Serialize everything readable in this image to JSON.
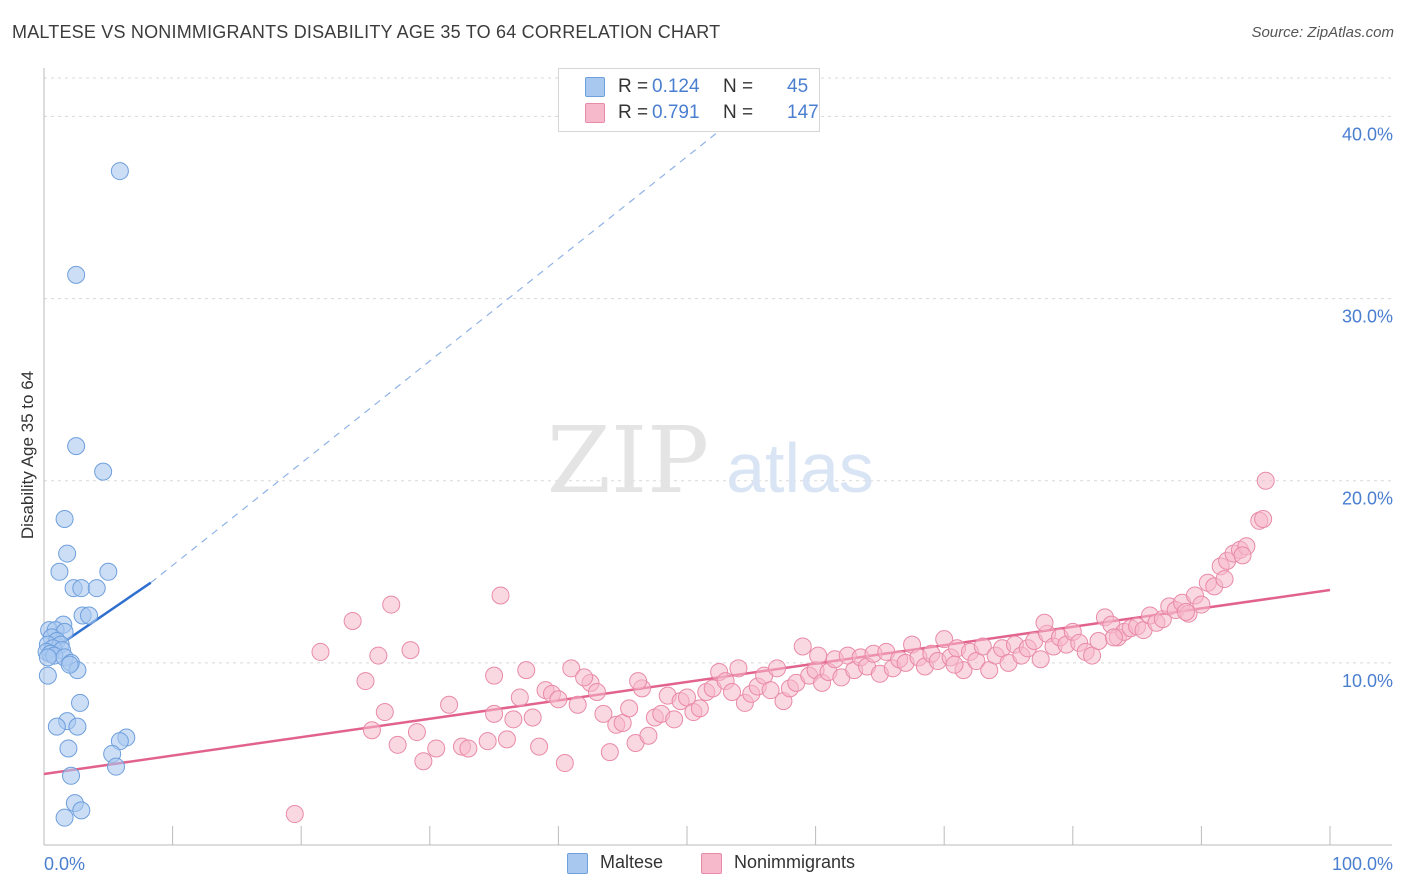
{
  "title": "MALTESE VS NONIMMIGRANTS DISABILITY AGE 35 TO 64 CORRELATION CHART",
  "source": "Source: ZipAtlas.com",
  "watermark": {
    "zip": "ZIP",
    "atlas": "atlas"
  },
  "colors": {
    "maltese_fill": "#a9c8f0",
    "maltese_stroke": "#6f9fdc",
    "maltese_line": "#2f6fd0",
    "nonimmigrants_fill": "#f6b8cb",
    "nonimmigrants_stroke": "#e98aa8",
    "nonimmigrants_line": "#e2628e",
    "tick_label": "#4a7fd0",
    "grid": "#d8d8d8"
  },
  "stats": {
    "maltese": {
      "r_label": "R =",
      "r_value": "0.124",
      "n_label": "N =",
      "n_value": "45"
    },
    "nonimmigrants": {
      "r_label": "R =",
      "r_value": "0.791",
      "n_label": "N =",
      "n_value": "147"
    }
  },
  "legend": {
    "maltese": "Maltese",
    "nonimmigrants": "Nonimmigrants"
  },
  "chart_data": {
    "type": "scatter",
    "title": "MALTESE VS NONIMMIGRANTS DISABILITY AGE 35 TO 64 CORRELATION CHART",
    "xlabel": "",
    "ylabel": "Disability Age 35 to 64",
    "xlim": [
      0,
      100
    ],
    "ylim": [
      0,
      42
    ],
    "x_tick_labels": [
      {
        "value": 0,
        "label": "0.0%"
      },
      {
        "value": 100,
        "label": "100.0%"
      }
    ],
    "y_tick_labels": [
      {
        "value": 10,
        "label": "10.0%"
      },
      {
        "value": 20,
        "label": "20.0%"
      },
      {
        "value": 30,
        "label": "30.0%"
      },
      {
        "value": 40,
        "label": "40.0%"
      }
    ],
    "series": [
      {
        "name": "Maltese",
        "R": 0.124,
        "N": 45,
        "trend": {
          "x": [
            0,
            8.3
          ],
          "y": [
            10.4,
            14.4
          ]
        },
        "trend_extended": {
          "x": [
            8.3,
            55
          ],
          "y": [
            14.4,
            40.6
          ]
        },
        "points": [
          [
            5.9,
            37.0
          ],
          [
            2.5,
            31.3
          ],
          [
            2.5,
            21.9
          ],
          [
            4.6,
            20.5
          ],
          [
            1.6,
            17.9
          ],
          [
            1.8,
            16.0
          ],
          [
            1.2,
            15.0
          ],
          [
            5.0,
            15.0
          ],
          [
            2.3,
            14.1
          ],
          [
            2.9,
            14.1
          ],
          [
            4.1,
            14.1
          ],
          [
            3.0,
            12.6
          ],
          [
            3.5,
            12.6
          ],
          [
            1.5,
            12.1
          ],
          [
            0.4,
            11.8
          ],
          [
            0.9,
            11.8
          ],
          [
            1.6,
            11.7
          ],
          [
            0.6,
            11.4
          ],
          [
            1.0,
            11.2
          ],
          [
            0.3,
            11.0
          ],
          [
            1.3,
            11.0
          ],
          [
            0.7,
            10.8
          ],
          [
            0.2,
            10.6
          ],
          [
            1.4,
            10.7
          ],
          [
            0.5,
            10.5
          ],
          [
            0.8,
            10.4
          ],
          [
            0.3,
            10.3
          ],
          [
            1.6,
            10.3
          ],
          [
            2.1,
            10.0
          ],
          [
            2.6,
            9.6
          ],
          [
            2.0,
            9.9
          ],
          [
            0.3,
            9.3
          ],
          [
            2.8,
            7.8
          ],
          [
            1.8,
            6.8
          ],
          [
            1.0,
            6.5
          ],
          [
            2.6,
            6.5
          ],
          [
            6.4,
            5.9
          ],
          [
            5.9,
            5.7
          ],
          [
            1.9,
            5.3
          ],
          [
            5.3,
            5.0
          ],
          [
            5.6,
            4.3
          ],
          [
            2.1,
            3.8
          ],
          [
            2.4,
            2.3
          ],
          [
            2.9,
            1.9
          ],
          [
            1.6,
            1.5
          ]
        ]
      },
      {
        "name": "Nonimmigrants",
        "R": 0.791,
        "N": 147,
        "trend": {
          "x": [
            0,
            100
          ],
          "y": [
            3.9,
            14.0
          ]
        },
        "points": [
          [
            19.5,
            1.7
          ],
          [
            21.5,
            10.6
          ],
          [
            24.0,
            12.3
          ],
          [
            25.0,
            9.0
          ],
          [
            25.5,
            6.3
          ],
          [
            26.0,
            10.4
          ],
          [
            26.5,
            7.3
          ],
          [
            27.0,
            13.2
          ],
          [
            27.5,
            5.5
          ],
          [
            28.5,
            10.7
          ],
          [
            29.0,
            6.2
          ],
          [
            29.5,
            4.6
          ],
          [
            30.5,
            5.3
          ],
          [
            31.5,
            7.7
          ],
          [
            32.5,
            5.4
          ],
          [
            33.0,
            5.3
          ],
          [
            35.0,
            9.3
          ],
          [
            35.0,
            7.2
          ],
          [
            35.5,
            13.7
          ],
          [
            36.0,
            5.8
          ],
          [
            36.5,
            6.9
          ],
          [
            37.0,
            8.1
          ],
          [
            37.5,
            9.6
          ],
          [
            38.0,
            7.0
          ],
          [
            38.5,
            5.4
          ],
          [
            39.0,
            8.5
          ],
          [
            39.5,
            8.3
          ],
          [
            40.0,
            8.0
          ],
          [
            41.0,
            9.7
          ],
          [
            41.5,
            7.7
          ],
          [
            42.5,
            8.9
          ],
          [
            43.0,
            8.4
          ],
          [
            43.5,
            7.2
          ],
          [
            44.0,
            5.1
          ],
          [
            44.5,
            6.6
          ],
          [
            45.0,
            6.7
          ],
          [
            45.5,
            7.5
          ],
          [
            46.0,
            5.6
          ],
          [
            46.5,
            8.6
          ],
          [
            47.0,
            6.0
          ],
          [
            47.5,
            7.0
          ],
          [
            48.0,
            7.2
          ],
          [
            48.5,
            8.2
          ],
          [
            49.0,
            6.9
          ],
          [
            49.5,
            7.9
          ],
          [
            50.0,
            8.1
          ],
          [
            50.5,
            7.3
          ],
          [
            51.0,
            7.5
          ],
          [
            51.5,
            8.4
          ],
          [
            52.0,
            8.6
          ],
          [
            52.5,
            9.5
          ],
          [
            53.0,
            9.0
          ],
          [
            53.5,
            8.4
          ],
          [
            54.0,
            9.7
          ],
          [
            54.5,
            7.8
          ],
          [
            55.0,
            8.3
          ],
          [
            55.5,
            8.7
          ],
          [
            56.0,
            9.3
          ],
          [
            56.5,
            8.5
          ],
          [
            57.0,
            9.7
          ],
          [
            57.5,
            7.9
          ],
          [
            58.0,
            8.6
          ],
          [
            58.5,
            8.9
          ],
          [
            59.0,
            10.9
          ],
          [
            59.5,
            9.3
          ],
          [
            60.0,
            9.6
          ],
          [
            60.5,
            8.9
          ],
          [
            61.0,
            9.5
          ],
          [
            61.5,
            10.2
          ],
          [
            62.0,
            9.2
          ],
          [
            62.5,
            10.4
          ],
          [
            63.0,
            9.6
          ],
          [
            63.5,
            10.3
          ],
          [
            64.0,
            9.8
          ],
          [
            64.5,
            10.5
          ],
          [
            65.0,
            9.4
          ],
          [
            65.5,
            10.6
          ],
          [
            66.0,
            9.7
          ],
          [
            66.5,
            10.2
          ],
          [
            67.0,
            10.0
          ],
          [
            67.5,
            11.0
          ],
          [
            68.0,
            10.3
          ],
          [
            68.5,
            9.8
          ],
          [
            69.0,
            10.5
          ],
          [
            69.5,
            10.1
          ],
          [
            70.0,
            11.3
          ],
          [
            70.5,
            10.3
          ],
          [
            71.0,
            10.8
          ],
          [
            71.5,
            9.6
          ],
          [
            72.0,
            10.6
          ],
          [
            72.5,
            10.1
          ],
          [
            73.0,
            10.9
          ],
          [
            73.5,
            9.6
          ],
          [
            74.0,
            10.4
          ],
          [
            74.5,
            10.8
          ],
          [
            75.0,
            10.0
          ],
          [
            75.5,
            11.0
          ],
          [
            76.0,
            10.4
          ],
          [
            76.5,
            10.8
          ],
          [
            77.0,
            11.2
          ],
          [
            77.5,
            10.2
          ],
          [
            78.0,
            11.6
          ],
          [
            78.5,
            10.9
          ],
          [
            79.0,
            11.4
          ],
          [
            79.5,
            11.0
          ],
          [
            80.0,
            11.7
          ],
          [
            80.5,
            11.1
          ],
          [
            81.0,
            10.6
          ],
          [
            81.5,
            10.4
          ],
          [
            82.0,
            11.2
          ],
          [
            82.5,
            12.5
          ],
          [
            83.0,
            12.1
          ],
          [
            83.5,
            11.4
          ],
          [
            84.0,
            11.7
          ],
          [
            84.5,
            11.9
          ],
          [
            85.0,
            12.0
          ],
          [
            85.5,
            11.8
          ],
          [
            86.0,
            12.6
          ],
          [
            86.5,
            12.2
          ],
          [
            87.0,
            12.4
          ],
          [
            87.5,
            13.1
          ],
          [
            88.0,
            12.9
          ],
          [
            88.5,
            13.3
          ],
          [
            89.0,
            12.7
          ],
          [
            89.5,
            13.7
          ],
          [
            90.0,
            13.2
          ],
          [
            90.5,
            14.4
          ],
          [
            91.0,
            14.2
          ],
          [
            91.5,
            15.3
          ],
          [
            92.0,
            15.6
          ],
          [
            92.5,
            16.0
          ],
          [
            93.0,
            16.2
          ],
          [
            93.5,
            16.4
          ],
          [
            94.5,
            17.8
          ],
          [
            94.8,
            17.9
          ],
          [
            95.0,
            20.0
          ],
          [
            34.5,
            5.7
          ],
          [
            40.5,
            4.5
          ],
          [
            42.0,
            9.2
          ],
          [
            46.2,
            9.0
          ],
          [
            60.2,
            10.4
          ],
          [
            70.8,
            9.9
          ],
          [
            77.8,
            12.2
          ],
          [
            83.2,
            11.4
          ],
          [
            88.8,
            12.8
          ],
          [
            91.8,
            14.6
          ],
          [
            93.2,
            15.9
          ]
        ]
      }
    ],
    "legend_position": "bottom-center"
  }
}
